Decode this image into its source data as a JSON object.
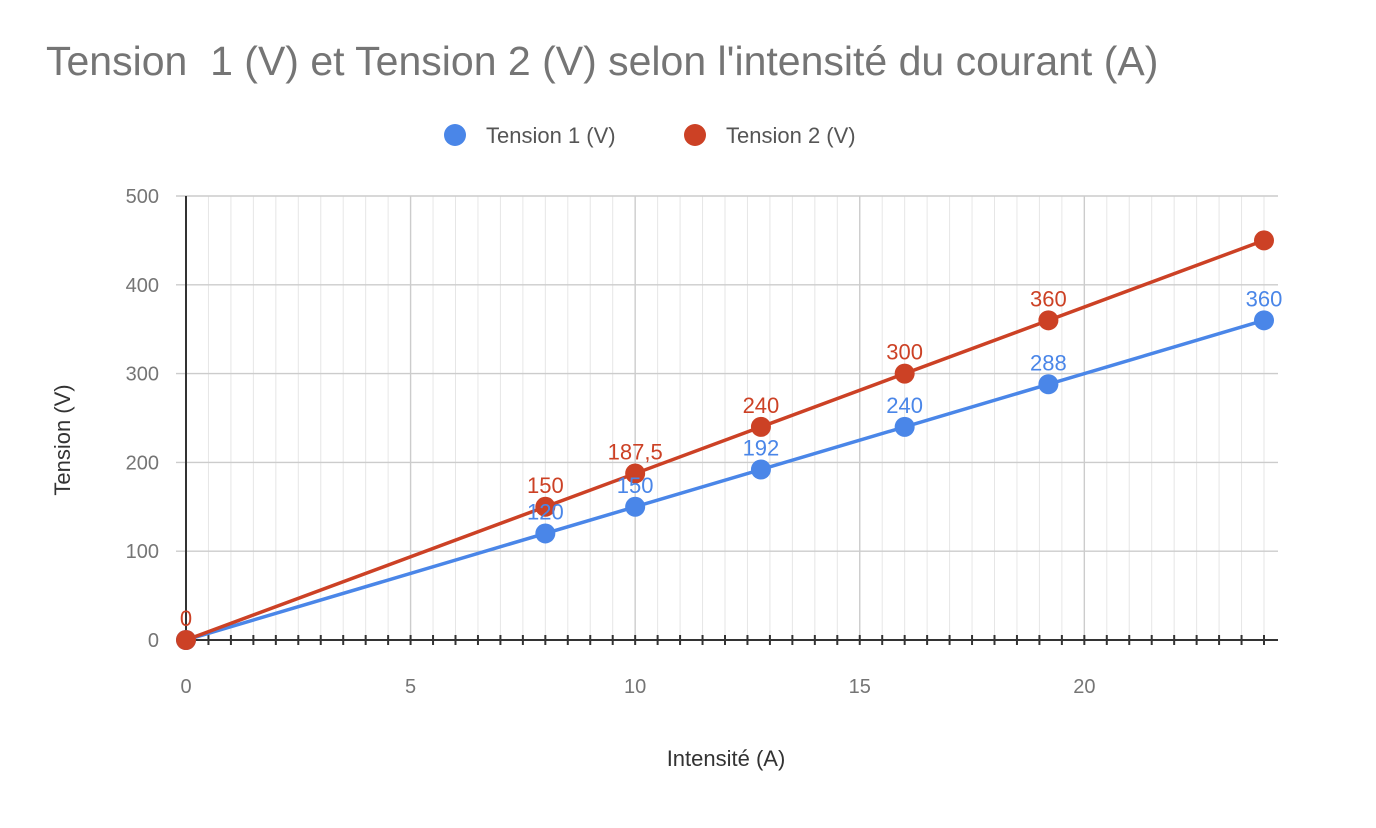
{
  "chart_data": {
    "type": "scatter",
    "title": "Tension  1 (V) et Tension 2 (V) selon l'intensité du courant (A)",
    "xlabel": "Intensité (A)",
    "ylabel": "Tension (V)",
    "xlim": [
      0,
      24
    ],
    "ylim": [
      0,
      500
    ],
    "x_ticks": [
      0,
      5,
      10,
      15,
      20
    ],
    "x_tick_labels": [
      "0",
      "5",
      "10",
      "15",
      "20"
    ],
    "y_ticks": [
      0,
      100,
      200,
      300,
      400,
      500
    ],
    "y_tick_labels": [
      "0",
      "100",
      "200",
      "300",
      "400",
      "500"
    ],
    "grid": true,
    "trendlines": true,
    "legend_position": "top",
    "series": [
      {
        "name": "Tension  1 (V)",
        "color": "#4a86e8",
        "x": [
          0,
          8,
          10,
          12.8,
          16,
          19.2,
          24
        ],
        "y": [
          0,
          120,
          150,
          192,
          240,
          288,
          360
        ],
        "data_labels": [
          "",
          "120",
          "150",
          "192",
          "240",
          "288",
          "360"
        ]
      },
      {
        "name": "Tension 2 (V)",
        "color": "#cc4125",
        "x": [
          0,
          8,
          10,
          12.8,
          16,
          19.2,
          24
        ],
        "y": [
          0,
          150,
          187.5,
          240,
          300,
          360,
          450
        ],
        "data_labels": [
          "0",
          "150",
          "187,5",
          "240",
          "300",
          "360",
          ""
        ]
      }
    ]
  }
}
